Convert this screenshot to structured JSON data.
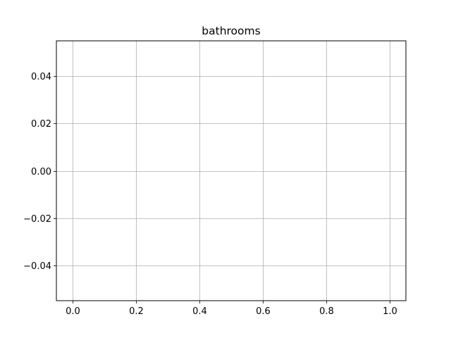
{
  "chart_data": {
    "type": "line",
    "title": "bathrooms",
    "xlabel": "",
    "ylabel": "",
    "series": [],
    "xlim": [
      -0.05,
      1.05
    ],
    "ylim": [
      -0.055,
      0.055
    ],
    "xticks": [
      0.0,
      0.2,
      0.4,
      0.6,
      0.8,
      1.0
    ],
    "xtick_labels": [
      "0.0",
      "0.2",
      "0.4",
      "0.6",
      "0.8",
      "1.0"
    ],
    "yticks": [
      -0.04,
      -0.02,
      0.0,
      0.02,
      0.04
    ],
    "ytick_labels": [
      "−0.04",
      "−0.02",
      "0.00",
      "0.02",
      "0.04"
    ],
    "grid": true
  },
  "colors": {
    "grid": "#b0b0b0",
    "axes": "#000000",
    "background": "#ffffff"
  }
}
